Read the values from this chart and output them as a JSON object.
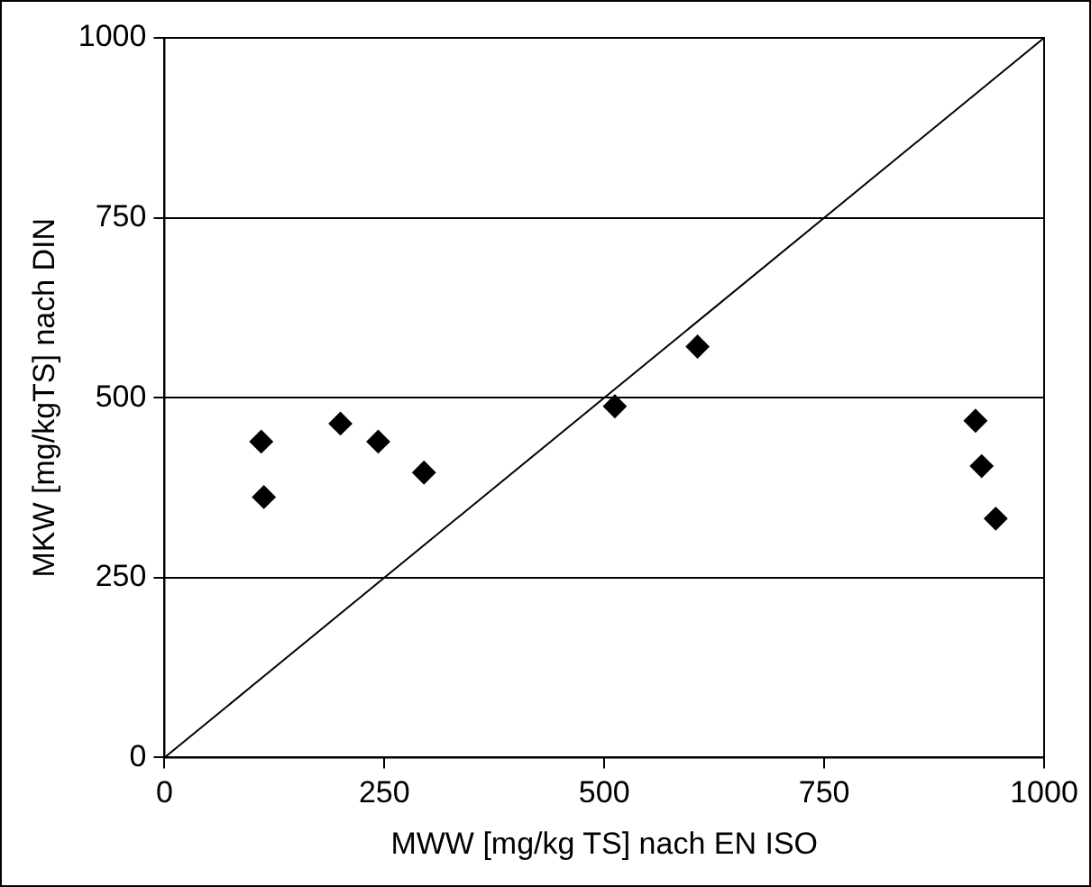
{
  "chart_data": {
    "type": "scatter",
    "xlabel": "MWW [mg/kg TS] nach EN ISO",
    "ylabel": "MKW [mg/kgTS] nach DIN",
    "xlim": [
      0,
      1000
    ],
    "xticks": [
      0,
      250,
      500,
      750,
      1000
    ],
    "ylim": [
      0,
      1000
    ],
    "yticks": [
      0,
      250,
      500,
      750,
      1000
    ],
    "grid": "y",
    "legend": false,
    "marker": "diamond",
    "series": [
      {
        "type": "scatter",
        "color": "#000000",
        "x": [
          110,
          113,
          200,
          243,
          295,
          512,
          606,
          922,
          929,
          945
        ],
        "values": [
          439,
          362,
          464,
          439,
          396,
          488,
          571,
          468,
          405,
          332
        ]
      },
      {
        "type": "line",
        "color": "#000000",
        "marker": "none",
        "x": [
          0,
          1000
        ],
        "values": [
          0,
          1000
        ]
      }
    ]
  }
}
